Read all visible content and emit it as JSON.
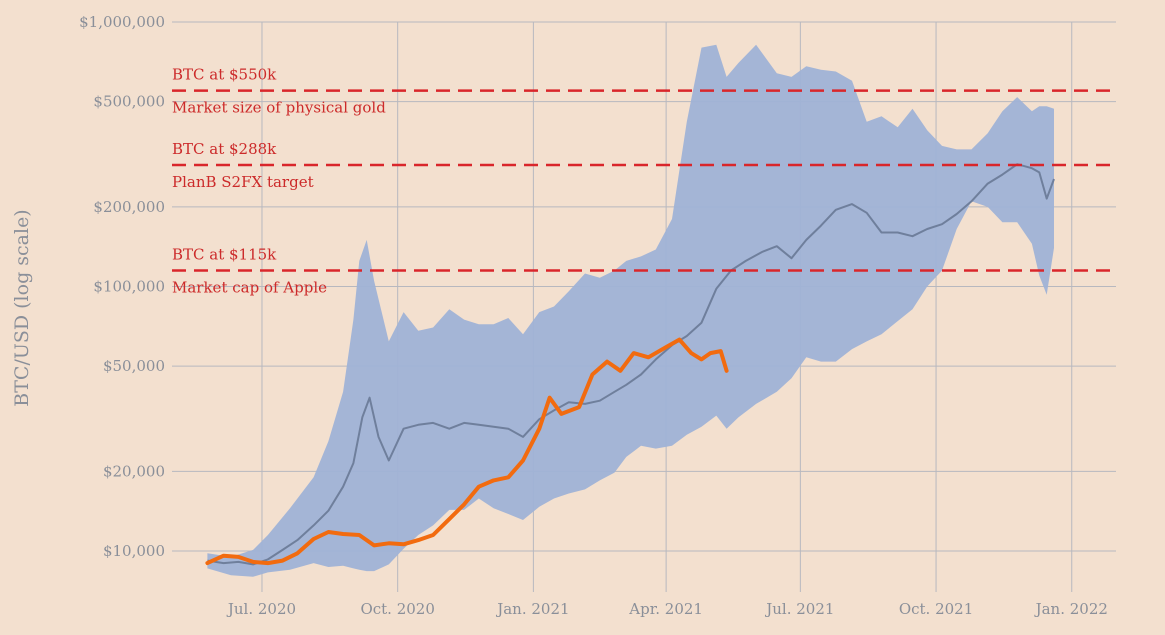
{
  "chart_data": {
    "type": "line",
    "ylabel": "BTC/USD (log scale)",
    "y_scale": "log",
    "ylim": [
      7000,
      1000000
    ],
    "xlim": [
      "2020-05-01",
      "2022-01-31"
    ],
    "y_ticks": [
      {
        "value": 10000,
        "label": "$10,000"
      },
      {
        "value": 20000,
        "label": "$20,000"
      },
      {
        "value": 50000,
        "label": "$50,000"
      },
      {
        "value": 100000,
        "label": "$100,000"
      },
      {
        "value": 200000,
        "label": "$200,000"
      },
      {
        "value": 500000,
        "label": "$500,000"
      },
      {
        "value": 1000000,
        "label": "$1,000,000"
      }
    ],
    "x_ticks": [
      {
        "date": "2020-07-01",
        "label": "Jul. 2020"
      },
      {
        "date": "2020-10-01",
        "label": "Oct. 2020"
      },
      {
        "date": "2021-01-01",
        "label": "Jan. 2021"
      },
      {
        "date": "2021-04-01",
        "label": "Apr. 2021"
      },
      {
        "date": "2021-07-01",
        "label": "Jul. 2021"
      },
      {
        "date": "2021-10-01",
        "label": "Oct. 2021"
      },
      {
        "date": "2022-01-01",
        "label": "Jan. 2022"
      }
    ],
    "grid": true,
    "colors": {
      "background": "#f3e0cf",
      "band": "#9fb2d6",
      "median": "#6f7f9c",
      "actual": "#f26b0f",
      "reference": "#d9262b",
      "grid": "#b7b8bf",
      "tick_text": "#8a8f99",
      "annotation_text": "#cc2a2a"
    },
    "reference_lines": [
      {
        "value": 550000,
        "label_top": "BTC at $550k",
        "label_bottom": "Market size of physical gold"
      },
      {
        "value": 288000,
        "label_top": "BTC at $288k",
        "label_bottom": "PlanB S2FX target"
      },
      {
        "value": 115000,
        "label_top": "BTC at $115k",
        "label_bottom": "Market cap of Apple"
      }
    ],
    "band": {
      "x": [
        "2020-05-25",
        "2020-06-10",
        "2020-06-25",
        "2020-07-05",
        "2020-07-20",
        "2020-08-05",
        "2020-08-15",
        "2020-08-25",
        "2020-09-01",
        "2020-09-05",
        "2020-09-10",
        "2020-09-15",
        "2020-09-25",
        "2020-10-05",
        "2020-10-15",
        "2020-10-25",
        "2020-11-05",
        "2020-11-15",
        "2020-11-25",
        "2020-12-05",
        "2020-12-15",
        "2020-12-25",
        "2021-01-05",
        "2021-01-15",
        "2021-01-25",
        "2021-02-05",
        "2021-02-15",
        "2021-02-25",
        "2021-03-05",
        "2021-03-15",
        "2021-03-25",
        "2021-04-05",
        "2021-04-15",
        "2021-04-25",
        "2021-05-05",
        "2021-05-12",
        "2021-05-20",
        "2021-06-01",
        "2021-06-15",
        "2021-06-25",
        "2021-07-05",
        "2021-07-15",
        "2021-07-25",
        "2021-08-05",
        "2021-08-15",
        "2021-08-25",
        "2021-09-05",
        "2021-09-15",
        "2021-09-25",
        "2021-10-05",
        "2021-10-15",
        "2021-10-25",
        "2021-11-05",
        "2021-11-15",
        "2021-11-25",
        "2021-12-05",
        "2021-12-10",
        "2021-12-15",
        "2021-12-20"
      ],
      "upper": [
        9800,
        9500,
        10100,
        11500,
        14500,
        19000,
        26000,
        40000,
        75000,
        125000,
        150000,
        105000,
        62000,
        80000,
        68000,
        70000,
        82000,
        75000,
        72000,
        72000,
        76000,
        66000,
        80000,
        84000,
        96000,
        112000,
        108000,
        115000,
        125000,
        130000,
        138000,
        180000,
        420000,
        800000,
        820000,
        620000,
        700000,
        820000,
        640000,
        620000,
        680000,
        660000,
        650000,
        600000,
        420000,
        440000,
        400000,
        470000,
        390000,
        340000,
        330000,
        330000,
        380000,
        460000,
        520000,
        460000,
        480000,
        480000,
        470000
      ],
      "lower": [
        8600,
        8100,
        8000,
        8300,
        8500,
        9000,
        8700,
        8800,
        8600,
        8500,
        8400,
        8400,
        8900,
        10200,
        11500,
        12500,
        14300,
        14300,
        15800,
        14500,
        13800,
        13100,
        14700,
        15800,
        16500,
        17100,
        18500,
        19800,
        22700,
        25000,
        24400,
        25000,
        27500,
        29500,
        32500,
        29000,
        32000,
        36000,
        40000,
        45000,
        54000,
        52000,
        52000,
        58000,
        62000,
        66000,
        74000,
        82000,
        100000,
        115000,
        165000,
        210000,
        200000,
        175000,
        175000,
        145000,
        110000,
        93000,
        140000
      ]
    },
    "median": {
      "x": [
        "2020-05-25",
        "2020-06-05",
        "2020-06-15",
        "2020-06-25",
        "2020-07-05",
        "2020-07-15",
        "2020-07-25",
        "2020-08-05",
        "2020-08-15",
        "2020-08-25",
        "2020-09-01",
        "2020-09-07",
        "2020-09-12",
        "2020-09-18",
        "2020-09-25",
        "2020-10-05",
        "2020-10-15",
        "2020-10-25",
        "2020-11-05",
        "2020-11-15",
        "2020-11-25",
        "2020-12-05",
        "2020-12-15",
        "2020-12-25",
        "2021-01-05",
        "2021-01-15",
        "2021-01-25",
        "2021-02-05",
        "2021-02-15",
        "2021-02-25",
        "2021-03-05",
        "2021-03-15",
        "2021-03-25",
        "2021-04-05",
        "2021-04-15",
        "2021-04-25",
        "2021-05-05",
        "2021-05-15",
        "2021-05-25",
        "2021-06-05",
        "2021-06-15",
        "2021-06-25",
        "2021-07-05",
        "2021-07-15",
        "2021-07-25",
        "2021-08-05",
        "2021-08-15",
        "2021-08-25",
        "2021-09-05",
        "2021-09-15",
        "2021-09-25",
        "2021-10-05",
        "2021-10-15",
        "2021-10-25",
        "2021-11-05",
        "2021-11-15",
        "2021-11-25",
        "2021-12-05",
        "2021-12-10",
        "2021-12-15",
        "2021-12-20"
      ],
      "values": [
        9200,
        9000,
        9100,
        8900,
        9300,
        10100,
        11000,
        12500,
        14200,
        17500,
        21500,
        32000,
        38000,
        27000,
        22000,
        29000,
        30000,
        30500,
        29000,
        30500,
        30000,
        29500,
        29000,
        27000,
        31500,
        34000,
        36500,
        36000,
        37000,
        40000,
        42500,
        46500,
        53000,
        60000,
        65000,
        73000,
        98000,
        115000,
        125000,
        135000,
        142000,
        128000,
        150000,
        170000,
        195000,
        205000,
        190000,
        160000,
        160000,
        155000,
        165000,
        172000,
        188000,
        210000,
        245000,
        265000,
        290000,
        280000,
        270000,
        215000,
        255000
      ]
    },
    "actual": {
      "x": [
        "2020-05-25",
        "2020-06-05",
        "2020-06-15",
        "2020-06-25",
        "2020-07-05",
        "2020-07-15",
        "2020-07-25",
        "2020-08-05",
        "2020-08-15",
        "2020-08-25",
        "2020-09-05",
        "2020-09-15",
        "2020-09-25",
        "2020-10-05",
        "2020-10-15",
        "2020-10-25",
        "2020-11-05",
        "2020-11-15",
        "2020-11-25",
        "2020-12-05",
        "2020-12-15",
        "2020-12-25",
        "2021-01-05",
        "2021-01-12",
        "2021-01-20",
        "2021-02-01",
        "2021-02-10",
        "2021-02-20",
        "2021-03-01",
        "2021-03-10",
        "2021-03-20",
        "2021-04-01",
        "2021-04-10",
        "2021-04-18",
        "2021-04-25",
        "2021-05-01",
        "2021-05-08",
        "2021-05-12"
      ],
      "values": [
        9000,
        9600,
        9500,
        9100,
        9000,
        9200,
        9800,
        11100,
        11800,
        11600,
        11500,
        10500,
        10700,
        10600,
        11000,
        11500,
        13200,
        15000,
        17500,
        18500,
        19000,
        22000,
        29000,
        38000,
        33000,
        35000,
        46500,
        52000,
        48000,
        56000,
        54000,
        59000,
        63000,
        56000,
        53000,
        56000,
        57000,
        48000
      ]
    }
  }
}
